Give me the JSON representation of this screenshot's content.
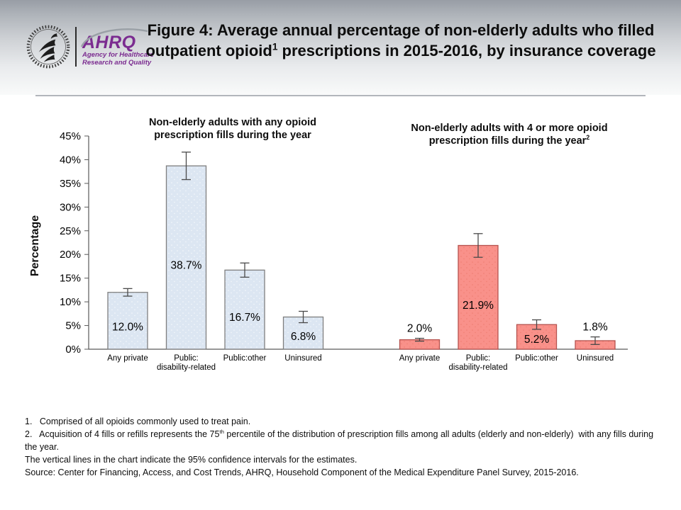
{
  "header": {
    "logo": {
      "hhs_alt": "U.S. Department of Health and Human Services seal",
      "ahrq_acronym": "AHRQ",
      "tagline_line1": "Agency for Healthcare",
      "tagline_line2": "Research and Quality",
      "brand_color": "#7b2c90"
    },
    "title": {
      "pre": "Figure 4: Average annual percentage of non-elderly adults who filled outpatient opioid",
      "sup": "1",
      "post": " prescriptions in 2015-2016, by insurance coverage"
    }
  },
  "chart_data": {
    "type": "bar",
    "ylabel": "Percentage",
    "ylim": [
      0,
      45
    ],
    "ytick_step": 5,
    "ytick_suffix": "%",
    "grid": false,
    "categories": [
      "Any private",
      "Public:|disability-related",
      "Public:other",
      "Uninsured"
    ],
    "groups": [
      {
        "title": "Non-elderly adults with any opioid prescription fills during the year",
        "title_sup": "",
        "bar_fill": "#dce6f2",
        "bar_dot": "#f7fafd",
        "bar_border": "#7f7f7f",
        "values": [
          12.0,
          38.7,
          16.7,
          6.8
        ],
        "value_labels": [
          "12.0%",
          "38.7%",
          "16.7%",
          "6.8%"
        ],
        "ci_half": [
          0.8,
          2.9,
          1.5,
          1.2
        ]
      },
      {
        "title": "Non-elderly adults with 4 or more opioid prescription fills during the year",
        "title_sup": "2",
        "bar_fill": "#f9918a",
        "bar_dot": "#ee7d71",
        "bar_border": "#b5534f",
        "values": [
          2.0,
          21.9,
          5.2,
          1.8
        ],
        "value_labels": [
          "2.0%",
          "21.9%",
          "5.2%",
          "1.8%"
        ],
        "ci_half": [
          0.3,
          2.5,
          1.0,
          0.8
        ]
      }
    ],
    "error_bars": "95% confidence intervals",
    "axis_color": "#595959",
    "error_bar_color": "#4a4a4a"
  },
  "footnotes": {
    "note1": "1.   Comprised of all opioids commonly used to treat pain.",
    "note2_pre": "2.   Acquisition of 4 fills or refills represents the 75",
    "note2_sup": "th",
    "note2_post": " percentile of the distribution of prescription fills among all adults (elderly and non-elderly)  with any fills during the year.",
    "note3": "The vertical lines in the chart indicate the 95% confidence intervals for the estimates.",
    "source": "Source: Center for Financing, Access, and Cost Trends, AHRQ, Household Component of the Medical Expenditure Panel Survey, 2015-2016."
  }
}
